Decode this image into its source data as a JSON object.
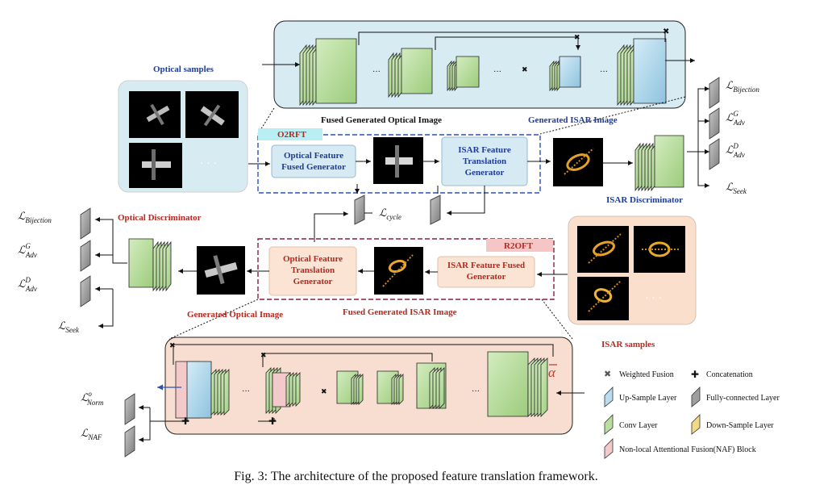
{
  "labels": {
    "optical_samples": "Optical samples",
    "isar_samples": "ISAR samples",
    "fused_generated_optical_image": "Fused Generated Optical Image",
    "generated_isar_image": "Generated ISAR Image",
    "isar_discriminator": "ISAR Discriminator",
    "optical_discriminator": "Optical Discriminator",
    "generated_optical_image": "Generated Optical Image",
    "fused_generated_isar_image": "Fused Generated ISAR Image",
    "o2rft": "O2RFT",
    "r2oft": "R2OFT",
    "ellipsis": "· · ·",
    "alpha_symbol": "α"
  },
  "boxes": {
    "optical_feature_fused_generator": [
      "Optical Feature",
      "Fused Generator"
    ],
    "isar_feature_translation_generator": [
      "ISAR Feature",
      "Translation",
      "Generator"
    ],
    "optical_feature_translation_generator": [
      "Optical Feature",
      "Translation",
      "Generator"
    ],
    "isar_feature_fused_generator": [
      "ISAR Feature Fused",
      "Generator"
    ]
  },
  "losses": {
    "right": [
      {
        "main": "ℒ",
        "sub": "Bijection",
        "sup": ""
      },
      {
        "main": "ℒ",
        "sub": "Adv",
        "sup": "G"
      },
      {
        "main": "ℒ",
        "sub": "Adv",
        "sup": "D"
      },
      {
        "main": "ℒ",
        "sub": "Seek",
        "sup": ""
      }
    ],
    "left": [
      {
        "main": "ℒ",
        "sub": "Bijection",
        "sup": ""
      },
      {
        "main": "ℒ",
        "sub": "Adv",
        "sup": "G"
      },
      {
        "main": "ℒ",
        "sub": "Adv",
        "sup": "D"
      },
      {
        "main": "ℒ",
        "sub": "Seek",
        "sup": ""
      }
    ],
    "cycle": {
      "main": "ℒ",
      "sub": "cycle"
    },
    "norm": {
      "main": "ℒ",
      "sub": "Norm",
      "sup": "o"
    },
    "naf": {
      "main": "ℒ",
      "sub": "NAF",
      "sup": ""
    }
  },
  "legend": [
    {
      "key": "weighted-fusion",
      "label": "Weighted Fusion",
      "icon": "cross-icon"
    },
    {
      "key": "concatenation",
      "label": "Concatenation",
      "icon": "plus-icon"
    },
    {
      "key": "up-sample",
      "label": "Up-Sample Layer",
      "color": "#b9dcef"
    },
    {
      "key": "fully-connected",
      "label": "Fully-connected Layer",
      "color": "#9e9e9e"
    },
    {
      "key": "conv",
      "label": "Conv Layer",
      "color": "#b9dea0"
    },
    {
      "key": "down-sample",
      "label": "Down-Sample Layer",
      "color": "#f2d98a"
    },
    {
      "key": "naf-block",
      "label": "Non-local Attentional Fusion(NAF) Block",
      "color": "#f4c9c9"
    }
  ],
  "caption": "Fig. 3: The architecture of the proposed feature translation framework.",
  "colors": {
    "blue_box": "#d6eaf3",
    "orange_box": "#fce4d4",
    "top_panel": "#d7ebf2",
    "bottom_panel": "#f7ded0",
    "conv": "#b9dea0",
    "upsample": "#b9dcef",
    "fc": "#9e9e9e",
    "o2rft_tag": "#b9eef2",
    "r2oft_tag": "#f6c6c6"
  }
}
